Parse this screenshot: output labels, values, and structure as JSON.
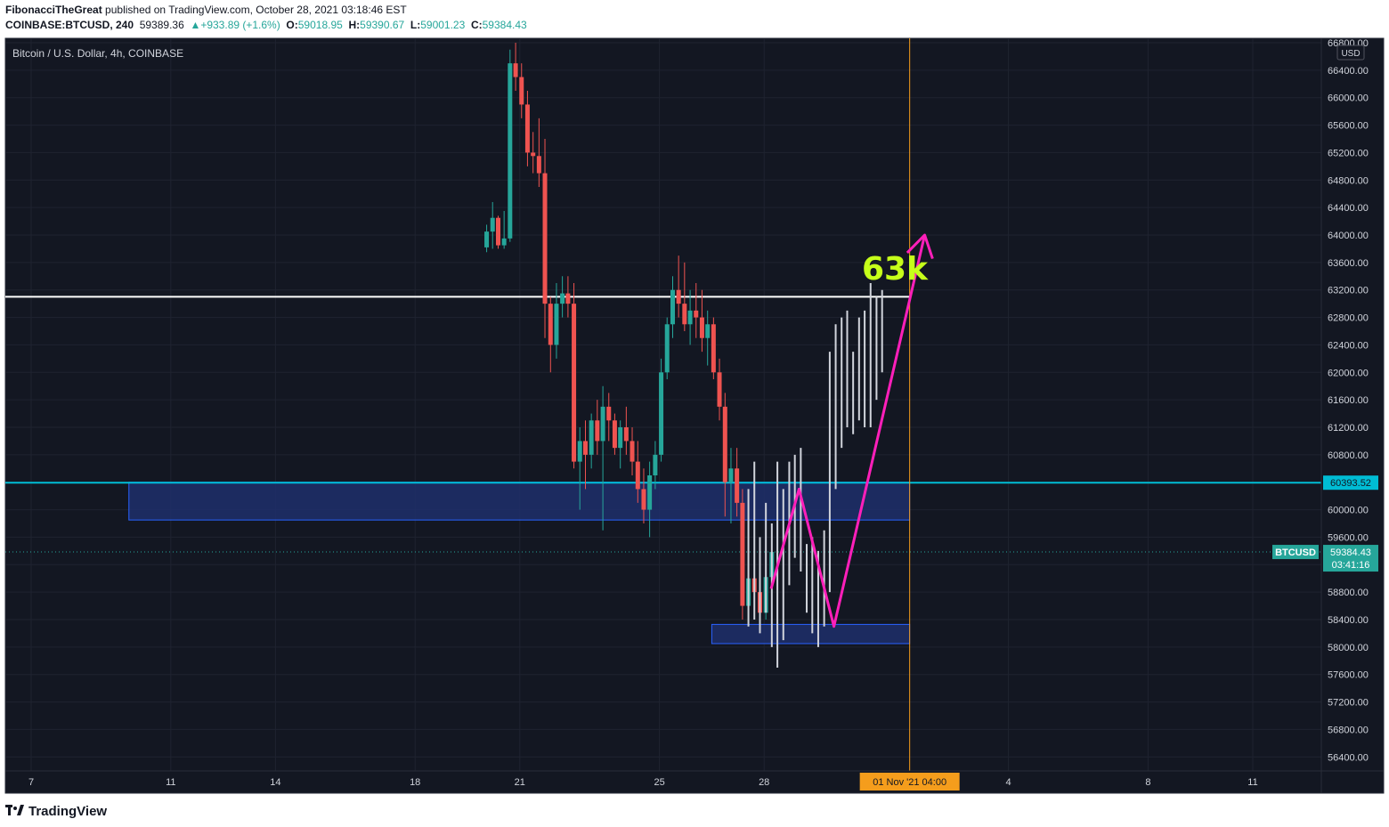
{
  "header": {
    "author": "FibonacciTheGreat",
    "published_text": "published on TradingView.com, October 28, 2021 03:18:46 EST",
    "symbol": "COINBASE:BTCUSD, 240",
    "last": "59389.36",
    "change": "+933.89 (+1.6%)",
    "o_label": "O:",
    "o_value": "59018.95",
    "h_label": "H:",
    "h_value": "59390.67",
    "l_label": "L:",
    "l_value": "59001.23",
    "c_label": "C:",
    "c_value": "59384.43"
  },
  "footer": {
    "brand": "TradingView"
  },
  "colors": {
    "background": "#131722",
    "up": "#26a69a",
    "down": "#ef5350",
    "projection": "#d1d4dc",
    "zone_fill": "#1e2f6b",
    "zone_border": "#2962ff",
    "level_line": "#00bcd4",
    "resistance_line": "#ffffff",
    "arrow": "#ff1fba",
    "annotation": "#c6ff1a",
    "timeline": "#f59d1c"
  },
  "chart_data": {
    "type": "candlestick",
    "title": "Bitcoin / U.S. Dollar, 4h, COINBASE",
    "currency": "USD",
    "ylim": [
      56300,
      66800
    ],
    "y_ticks": [
      56400,
      56800,
      57200,
      57600,
      58000,
      58400,
      58800,
      59200,
      59600,
      60000,
      60400,
      60800,
      61200,
      61600,
      62000,
      62400,
      62800,
      63200,
      63600,
      64000,
      64400,
      64800,
      65200,
      65600,
      66000,
      66400,
      66800
    ],
    "x_ticks": [
      {
        "label": "7",
        "day": 7
      },
      {
        "label": "11",
        "day": 11
      },
      {
        "label": "14",
        "day": 14
      },
      {
        "label": "18",
        "day": 18
      },
      {
        "label": "21",
        "day": 21
      },
      {
        "label": "25",
        "day": 25
      },
      {
        "label": "28",
        "day": 28
      },
      {
        "label": "4",
        "day": 35
      },
      {
        "label": "8",
        "day": 39
      },
      {
        "label": "11",
        "day": 42
      }
    ],
    "time_marker": {
      "label": "01 Nov '21   04:00",
      "day": 32.17
    },
    "price_labels": [
      {
        "text": "60393.52",
        "value": 60393.52,
        "kind": "level"
      },
      {
        "text": "59384.43",
        "value": 59384.43,
        "kind": "last",
        "symbol": "BTCUSD",
        "countdown": "03:41:16"
      }
    ],
    "horizontal_lines": [
      {
        "value": 63100,
        "color": "#ffffff",
        "from_day": 6.0,
        "to_day": 32.17
      },
      {
        "value": 60393.52,
        "color": "#00bcd4",
        "from_day": 6.0,
        "to_day": 44.0
      }
    ],
    "zones": [
      {
        "from_day": 9.8,
        "to_day": 32.17,
        "low": 59850,
        "high": 60400
      },
      {
        "from_day": 26.5,
        "to_day": 32.17,
        "low": 58050,
        "high": 58330
      }
    ],
    "annotation": {
      "text": "63k",
      "day": 30.8,
      "value": 63350
    },
    "arrow_path": [
      [
        28.2,
        58850
      ],
      [
        29.0,
        60300
      ],
      [
        30.0,
        58300
      ],
      [
        32.6,
        64000
      ]
    ],
    "candles": [
      {
        "d": 20.05,
        "o": 63820,
        "h": 64150,
        "l": 63750,
        "c": 64050
      },
      {
        "d": 20.22,
        "o": 64050,
        "h": 64480,
        "l": 63800,
        "c": 64250
      },
      {
        "d": 20.38,
        "o": 64250,
        "h": 64280,
        "l": 63800,
        "c": 63850
      },
      {
        "d": 20.55,
        "o": 63850,
        "h": 64350,
        "l": 63800,
        "c": 63950
      },
      {
        "d": 20.72,
        "o": 63950,
        "h": 66700,
        "l": 63900,
        "c": 66500
      },
      {
        "d": 20.88,
        "o": 66500,
        "h": 66800,
        "l": 66100,
        "c": 66300
      },
      {
        "d": 21.05,
        "o": 66300,
        "h": 66500,
        "l": 65700,
        "c": 65900
      },
      {
        "d": 21.22,
        "o": 65900,
        "h": 66100,
        "l": 65000,
        "c": 65200
      },
      {
        "d": 21.38,
        "o": 65200,
        "h": 65500,
        "l": 64900,
        "c": 65150
      },
      {
        "d": 21.55,
        "o": 65150,
        "h": 65700,
        "l": 64700,
        "c": 64900
      },
      {
        "d": 21.72,
        "o": 64900,
        "h": 65400,
        "l": 62500,
        "c": 63000
      },
      {
        "d": 21.88,
        "o": 63000,
        "h": 63100,
        "l": 62000,
        "c": 62400
      },
      {
        "d": 22.05,
        "o": 62400,
        "h": 63300,
        "l": 62200,
        "c": 63000
      },
      {
        "d": 22.22,
        "o": 63000,
        "h": 63400,
        "l": 62800,
        "c": 63150
      },
      {
        "d": 22.38,
        "o": 63150,
        "h": 63400,
        "l": 62800,
        "c": 63000
      },
      {
        "d": 22.55,
        "o": 63000,
        "h": 63300,
        "l": 60600,
        "c": 60700
      },
      {
        "d": 22.72,
        "o": 60700,
        "h": 61200,
        "l": 60000,
        "c": 61000
      },
      {
        "d": 22.88,
        "o": 61000,
        "h": 61300,
        "l": 60300,
        "c": 60800
      },
      {
        "d": 23.05,
        "o": 60800,
        "h": 61400,
        "l": 60600,
        "c": 61300
      },
      {
        "d": 23.22,
        "o": 61300,
        "h": 61600,
        "l": 60800,
        "c": 61000
      },
      {
        "d": 23.38,
        "o": 61000,
        "h": 61800,
        "l": 59700,
        "c": 61500
      },
      {
        "d": 23.55,
        "o": 61500,
        "h": 61700,
        "l": 61000,
        "c": 61300
      },
      {
        "d": 23.72,
        "o": 61300,
        "h": 61400,
        "l": 60800,
        "c": 60900
      },
      {
        "d": 23.88,
        "o": 60900,
        "h": 61300,
        "l": 60600,
        "c": 61200
      },
      {
        "d": 24.05,
        "o": 61200,
        "h": 61500,
        "l": 60800,
        "c": 61000
      },
      {
        "d": 24.22,
        "o": 61000,
        "h": 61200,
        "l": 60500,
        "c": 60700
      },
      {
        "d": 24.38,
        "o": 60700,
        "h": 61000,
        "l": 60100,
        "c": 60300
      },
      {
        "d": 24.55,
        "o": 60300,
        "h": 60600,
        "l": 59800,
        "c": 60000
      },
      {
        "d": 24.72,
        "o": 60000,
        "h": 60700,
        "l": 59600,
        "c": 60500
      },
      {
        "d": 24.88,
        "o": 60500,
        "h": 61000,
        "l": 60300,
        "c": 60800
      },
      {
        "d": 25.05,
        "o": 60800,
        "h": 62200,
        "l": 60700,
        "c": 62000
      },
      {
        "d": 25.22,
        "o": 62000,
        "h": 62800,
        "l": 61900,
        "c": 62700
      },
      {
        "d": 25.38,
        "o": 62700,
        "h": 63400,
        "l": 62500,
        "c": 63200
      },
      {
        "d": 25.55,
        "o": 63200,
        "h": 63700,
        "l": 62800,
        "c": 63000
      },
      {
        "d": 25.72,
        "o": 63000,
        "h": 63600,
        "l": 62600,
        "c": 62700
      },
      {
        "d": 25.88,
        "o": 62700,
        "h": 63200,
        "l": 62400,
        "c": 62900
      },
      {
        "d": 26.05,
        "o": 62900,
        "h": 63300,
        "l": 62500,
        "c": 62800
      },
      {
        "d": 26.22,
        "o": 62800,
        "h": 63200,
        "l": 62300,
        "c": 62500
      },
      {
        "d": 26.38,
        "o": 62500,
        "h": 62900,
        "l": 62100,
        "c": 62700
      },
      {
        "d": 26.55,
        "o": 62700,
        "h": 62800,
        "l": 61900,
        "c": 62000
      },
      {
        "d": 26.72,
        "o": 62000,
        "h": 62200,
        "l": 61300,
        "c": 61500
      },
      {
        "d": 26.88,
        "o": 61500,
        "h": 61700,
        "l": 59900,
        "c": 60400
      },
      {
        "d": 27.05,
        "o": 60400,
        "h": 60900,
        "l": 59800,
        "c": 60600
      },
      {
        "d": 27.22,
        "o": 60600,
        "h": 60900,
        "l": 59900,
        "c": 60100
      },
      {
        "d": 27.38,
        "o": 60100,
        "h": 60300,
        "l": 58400,
        "c": 58600
      },
      {
        "d": 27.55,
        "o": 58600,
        "h": 59200,
        "l": 58300,
        "c": 59000
      },
      {
        "d": 27.72,
        "o": 59000,
        "h": 59300,
        "l": 58600,
        "c": 58800
      },
      {
        "d": 27.88,
        "o": 58800,
        "h": 59000,
        "l": 58300,
        "c": 58500
      },
      {
        "d": 28.05,
        "o": 58500,
        "h": 59000,
        "l": 58400,
        "c": 59018.95
      },
      {
        "d": 28.22,
        "o": 59018.95,
        "h": 59390.67,
        "l": 59001.23,
        "c": 59384.43
      }
    ],
    "projection_bars": [
      {
        "d": 27.55,
        "h": 60300,
        "l": 58300
      },
      {
        "d": 27.72,
        "h": 60700,
        "l": 58400
      },
      {
        "d": 27.88,
        "h": 59600,
        "l": 58200
      },
      {
        "d": 28.05,
        "h": 60100,
        "l": 58500
      },
      {
        "d": 28.22,
        "h": 59800,
        "l": 58000
      },
      {
        "d": 28.38,
        "h": 60700,
        "l": 57700
      },
      {
        "d": 28.55,
        "h": 60300,
        "l": 58100
      },
      {
        "d": 28.72,
        "h": 60700,
        "l": 58900
      },
      {
        "d": 28.88,
        "h": 60800,
        "l": 59300
      },
      {
        "d": 29.05,
        "h": 60900,
        "l": 59100
      },
      {
        "d": 29.22,
        "h": 59500,
        "l": 58500
      },
      {
        "d": 29.38,
        "h": 59600,
        "l": 58200
      },
      {
        "d": 29.55,
        "h": 59400,
        "l": 58000
      },
      {
        "d": 29.72,
        "h": 59700,
        "l": 58300
      },
      {
        "d": 29.88,
        "h": 62300,
        "l": 58800
      },
      {
        "d": 30.05,
        "h": 62700,
        "l": 60300
      },
      {
        "d": 30.22,
        "h": 62800,
        "l": 60900
      },
      {
        "d": 30.38,
        "h": 62900,
        "l": 61200
      },
      {
        "d": 30.55,
        "h": 62300,
        "l": 61100
      },
      {
        "d": 30.72,
        "h": 62800,
        "l": 61300
      },
      {
        "d": 30.88,
        "h": 62900,
        "l": 61200
      },
      {
        "d": 31.05,
        "h": 63300,
        "l": 61200
      },
      {
        "d": 31.22,
        "h": 63100,
        "l": 61600
      },
      {
        "d": 31.38,
        "h": 63200,
        "l": 62000
      }
    ]
  }
}
